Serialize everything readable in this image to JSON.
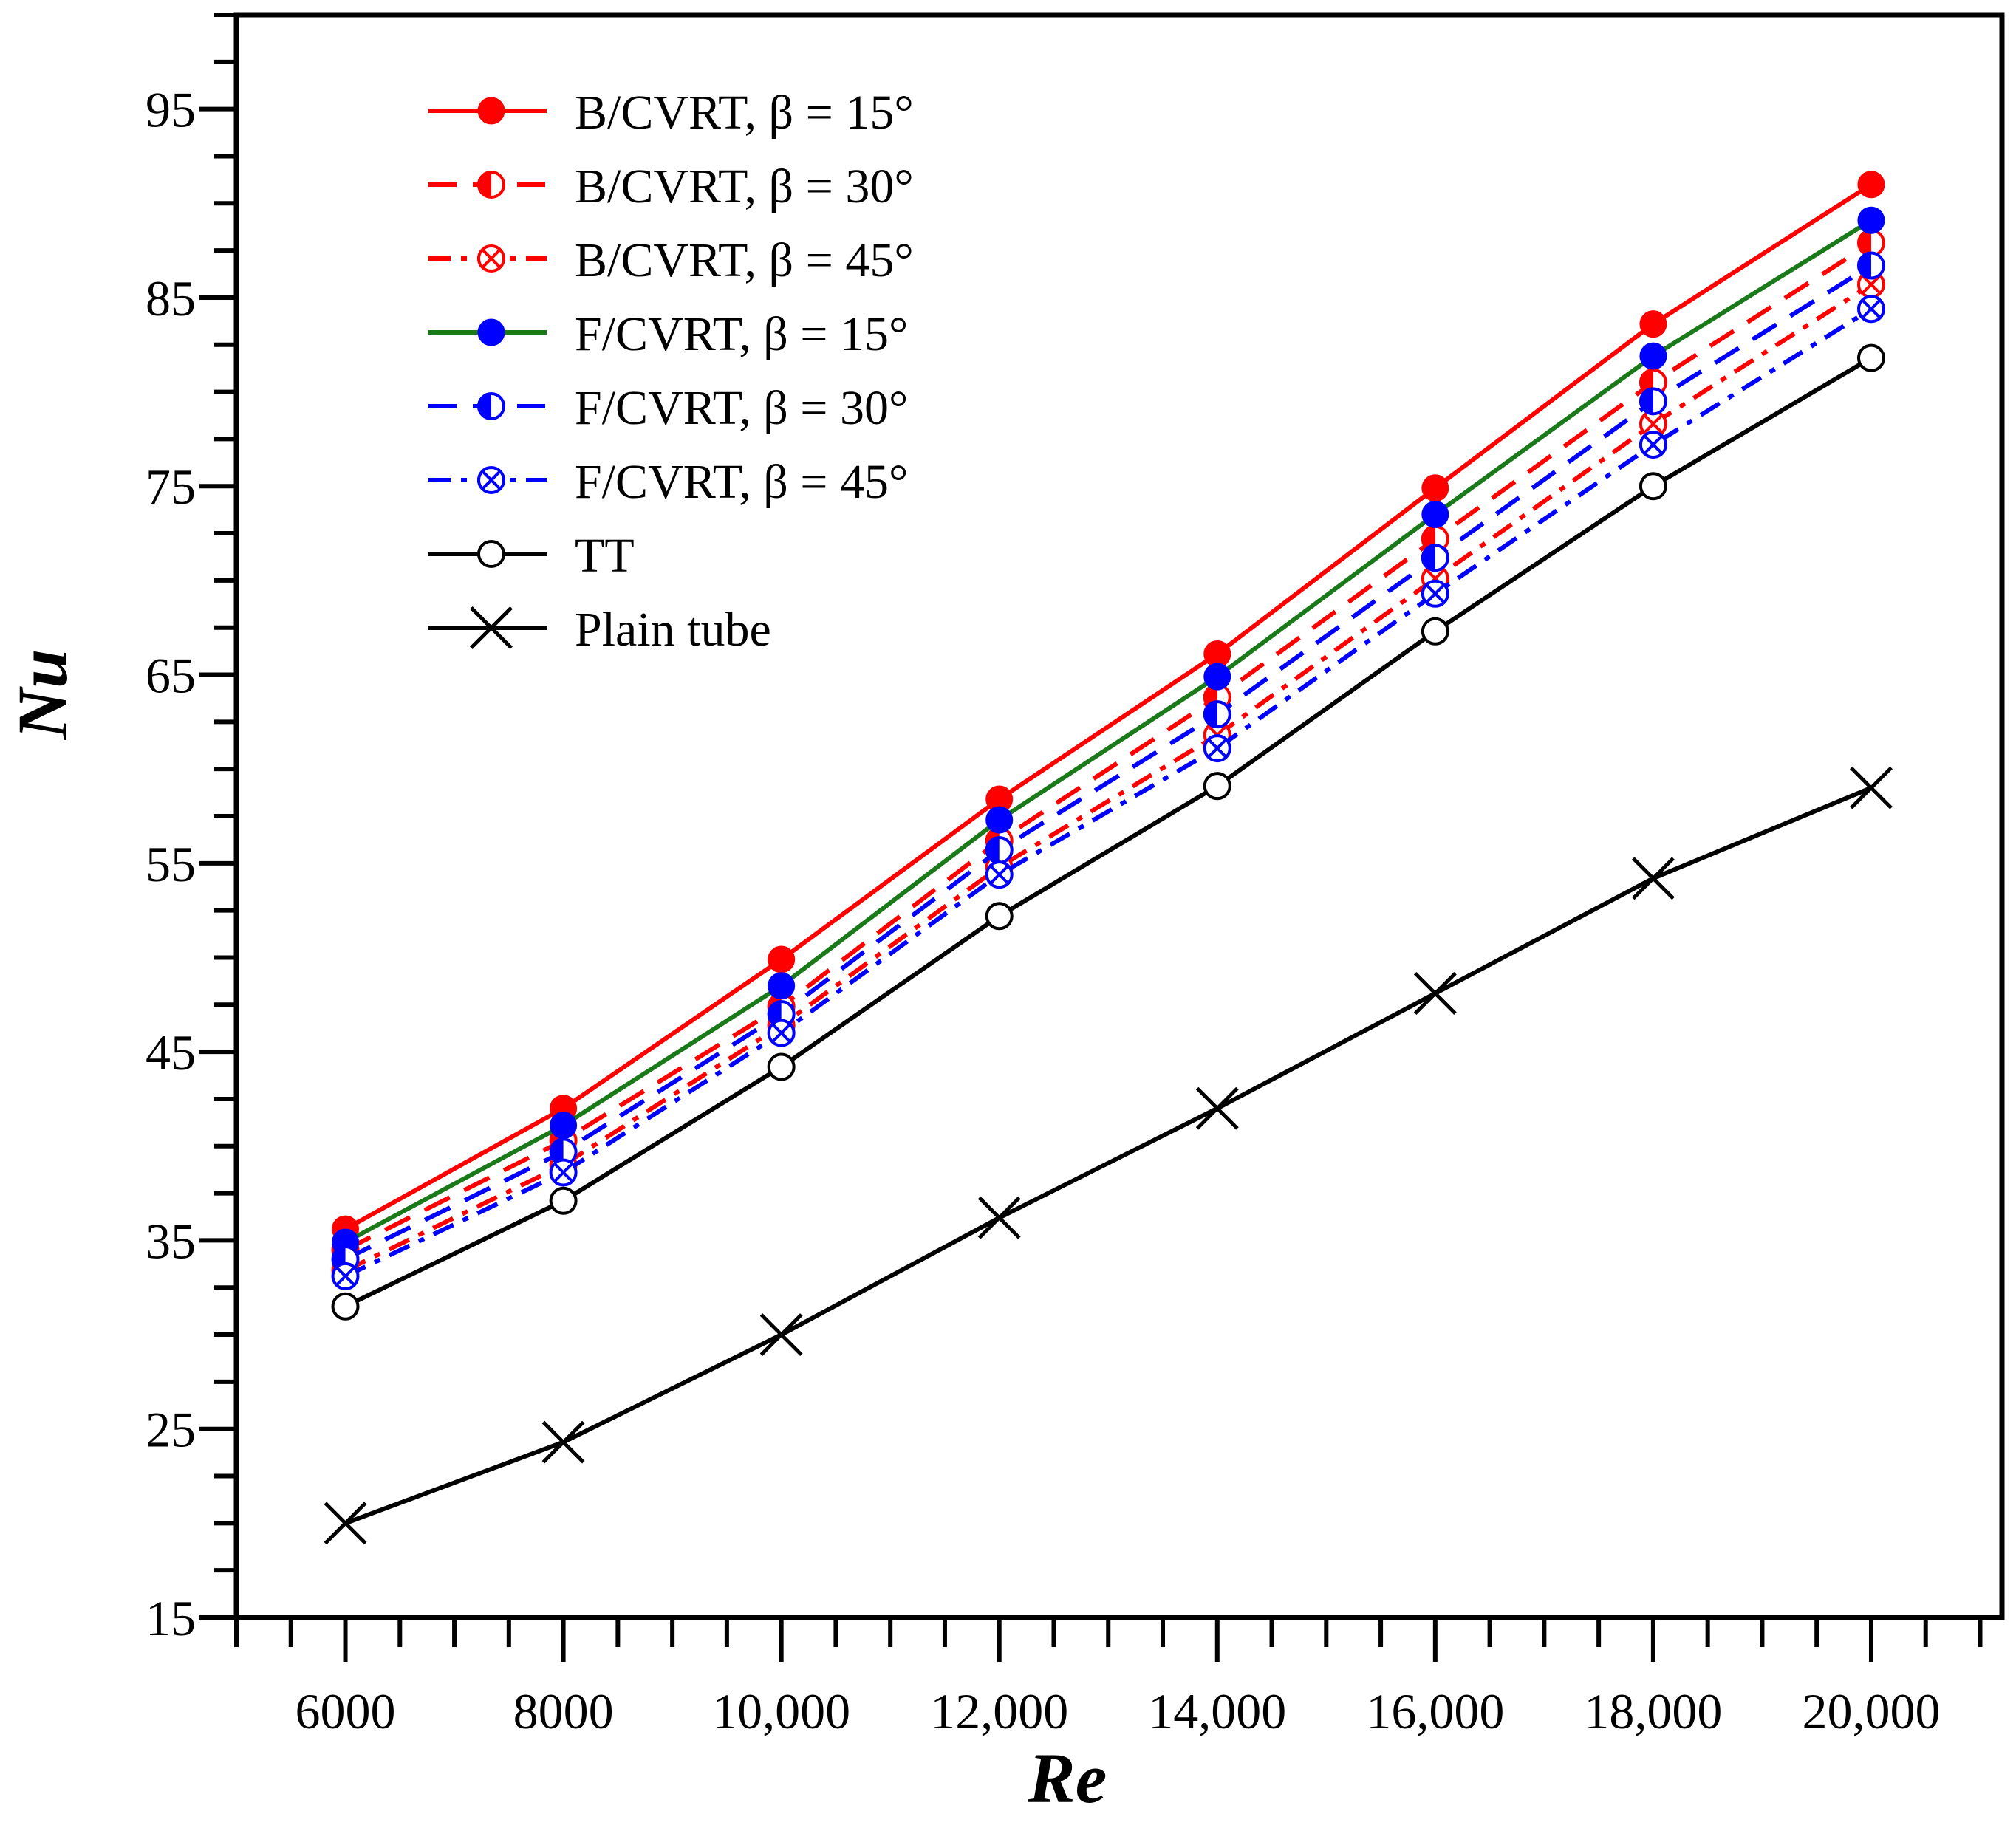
{
  "chart_data": {
    "type": "line",
    "title": "",
    "xlabel": "Re",
    "ylabel": "Nu",
    "xlim": [
      5000,
      21200
    ],
    "ylim": [
      15,
      100
    ],
    "grid": false,
    "legend_position": "top-left",
    "x": [
      6000,
      8000,
      10000,
      12000,
      14000,
      16000,
      18000,
      20000
    ],
    "x_tick_labels": [
      "6000",
      "8000",
      "10,000",
      "12,000",
      "14,000",
      "16,000",
      "18,000",
      "20,000"
    ],
    "y_ticks": [
      15,
      25,
      35,
      45,
      55,
      65,
      75,
      85,
      95
    ],
    "y_tick_labels": [
      "15",
      "25",
      "35",
      "45",
      "55",
      "65",
      "75",
      "85",
      "95"
    ],
    "series": [
      {
        "name": "B/CVRT, β = 15°",
        "color": "#ff0000",
        "line": "solid",
        "marker": "filled",
        "values": [
          35.6,
          42.0,
          49.9,
          58.4,
          66.1,
          74.9,
          83.6,
          91.0
        ]
      },
      {
        "name": "B/CVRT, β = 30°",
        "color": "#ff0000",
        "line": "dashed",
        "marker": "half",
        "values": [
          34.5,
          40.3,
          47.4,
          56.2,
          63.8,
          72.2,
          80.5,
          87.9
        ]
      },
      {
        "name": "B/CVRT, β = 45°",
        "color": "#ff0000",
        "line": "dashdot",
        "marker": "crossed",
        "values": [
          33.4,
          39.0,
          46.4,
          54.8,
          61.8,
          70.1,
          78.3,
          85.7
        ]
      },
      {
        "name": "F/CVRT, β = 15°",
        "color": "#0000ff",
        "line": "solid",
        "line_color": "#1a7a1a",
        "marker": "filled",
        "values": [
          34.9,
          41.1,
          48.5,
          57.3,
          64.9,
          73.5,
          81.9,
          89.1
        ]
      },
      {
        "name": "F/CVRT, β = 30°",
        "color": "#0000ff",
        "line": "dashed",
        "marker": "half",
        "values": [
          34.0,
          39.7,
          47.0,
          55.7,
          62.9,
          71.2,
          79.5,
          86.7
        ]
      },
      {
        "name": "F/CVRT, β = 45°",
        "color": "#0000ff",
        "line": "dashdot",
        "marker": "crossed",
        "values": [
          33.1,
          38.6,
          46.0,
          54.4,
          61.1,
          69.3,
          77.2,
          84.4
        ]
      },
      {
        "name": "TT",
        "color": "#000000",
        "line": "solid",
        "marker": "open",
        "values": [
          31.5,
          37.1,
          44.2,
          52.2,
          59.1,
          67.3,
          75.0,
          81.8
        ]
      },
      {
        "name": "Plain tube",
        "color": "#000000",
        "line": "solid",
        "marker": "x",
        "values": [
          20.0,
          24.3,
          30.0,
          36.2,
          42.0,
          48.1,
          54.2,
          59.0
        ]
      }
    ]
  }
}
